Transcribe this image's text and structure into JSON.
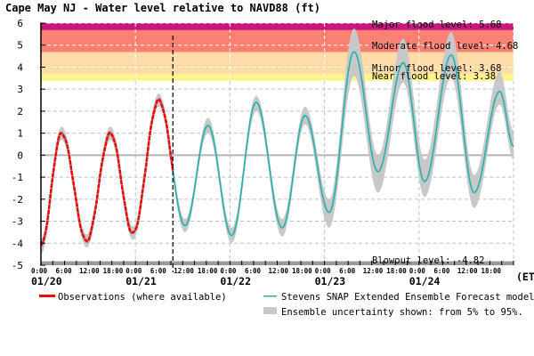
{
  "chart_data": {
    "type": "line",
    "title": "Cape May NJ  -  Water level relative to NAVD88 (ft)",
    "ylim": [
      -5,
      6
    ],
    "yticks": [
      "6",
      "5",
      "4",
      "3",
      "2",
      "1",
      "0",
      "-1",
      "-2",
      "-3",
      "-4",
      "-5"
    ],
    "xlim": [
      "01/20 00:00",
      "01/25 00:00"
    ],
    "x_hour_ticks": [
      "0:00",
      "6:00",
      "12:00",
      "18:00"
    ],
    "x_date_labels": [
      "01/20",
      "01/21",
      "01/22",
      "01/23",
      "01/24"
    ],
    "x_unit_label": "(ET)",
    "grid": true,
    "thresholds": [
      {
        "label": "Major flood level: 5.68",
        "value": 5.68,
        "color": "#c8177e"
      },
      {
        "label": "Moderate flood level: 4.68",
        "value": 4.68,
        "color": "#fa8072"
      },
      {
        "label": "Minor flood level: 3.68",
        "value": 3.68,
        "color": "#fedca8"
      },
      {
        "label": "Near flood level: 3.38",
        "value": 3.38,
        "color": "#fef48a"
      },
      {
        "label": "Blowout level: -4.82",
        "value": -4.82,
        "color": "#999999"
      }
    ],
    "observations_end": "01/21 09:30",
    "forecast_extrema": [
      {
        "t": "01/20 00:00",
        "v": -4.1,
        "lo": -4.5,
        "hi": -3.8
      },
      {
        "t": "01/20 05:15",
        "v": 1.0,
        "lo": 0.7,
        "hi": 1.3
      },
      {
        "t": "01/20 11:35",
        "v": -3.9,
        "lo": -4.2,
        "hi": -3.6
      },
      {
        "t": "01/20 17:40",
        "v": 1.0,
        "lo": 0.7,
        "hi": 1.3
      },
      {
        "t": "01/20 23:20",
        "v": -3.55,
        "lo": -3.85,
        "hi": -3.25
      },
      {
        "t": "01/21 05:55",
        "v": 2.5,
        "lo": 2.2,
        "hi": 2.8
      },
      {
        "t": "01/21 12:35",
        "v": -3.2,
        "lo": -3.5,
        "hi": -2.9
      },
      {
        "t": "01/21 18:25",
        "v": 1.35,
        "lo": 1.0,
        "hi": 1.7
      },
      {
        "t": "01/22 00:25",
        "v": -3.65,
        "lo": -4.0,
        "hi": -3.3
      },
      {
        "t": "01/22 06:40",
        "v": 2.4,
        "lo": 2.0,
        "hi": 2.7
      },
      {
        "t": "01/22 13:15",
        "v": -3.3,
        "lo": -3.7,
        "hi": -2.9
      },
      {
        "t": "01/22 19:05",
        "v": 1.8,
        "lo": 1.4,
        "hi": 2.2
      },
      {
        "t": "01/23 01:10",
        "v": -2.6,
        "lo": -3.3,
        "hi": -2.0
      },
      {
        "t": "01/23 07:30",
        "v": 4.7,
        "lo": 3.6,
        "hi": 5.75
      },
      {
        "t": "01/23 13:35",
        "v": -0.75,
        "lo": -1.7,
        "hi": 0.0
      },
      {
        "t": "01/23 20:00",
        "v": 4.2,
        "lo": 3.3,
        "hi": 5.3
      },
      {
        "t": "01/24 01:25",
        "v": -1.2,
        "lo": -1.9,
        "hi": -0.2
      },
      {
        "t": "01/24 08:10",
        "v": 4.55,
        "lo": 3.5,
        "hi": 5.6
      },
      {
        "t": "01/24 14:00",
        "v": -1.7,
        "lo": -2.4,
        "hi": -0.9
      },
      {
        "t": "01/24 20:30",
        "v": 2.9,
        "lo": 2.3,
        "hi": 3.8
      },
      {
        "t": "01/25 00:00",
        "v": 0.4,
        "lo": -0.2,
        "hi": 1.1
      }
    ],
    "series": [
      {
        "name": "Observations (where available)",
        "color": "#ff0000"
      },
      {
        "name": "Stevens SNAP Extended Ensemble Forecast models",
        "color": "#20b2aa"
      },
      {
        "name": "Ensemble uncertainty shown: from 5% to 95%.",
        "color": "#c8c8c8"
      }
    ]
  }
}
